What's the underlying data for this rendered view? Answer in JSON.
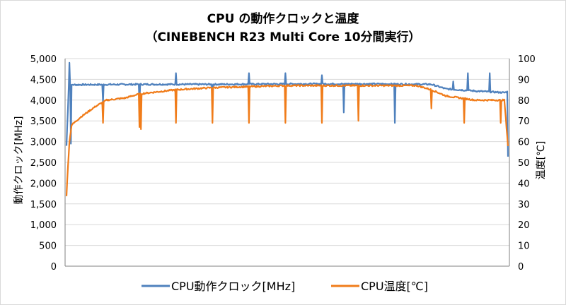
{
  "chart_data": {
    "type": "line",
    "title_line1": "CPU の動作クロックと温度",
    "title_line2": "（CINEBENCH R23 Multi Core 10分間実行）",
    "y_left": {
      "label": "動作クロック[MHz]",
      "min": 0,
      "max": 5000,
      "step": 500,
      "ticks": [
        "0",
        "500",
        "1,000",
        "1,500",
        "2,000",
        "2,500",
        "3,000",
        "3,500",
        "4,000",
        "4,500",
        "5,000"
      ]
    },
    "y_right": {
      "label": "温度[℃]",
      "min": 0,
      "max": 100,
      "step": 10,
      "ticks": [
        "0",
        "10",
        "20",
        "30",
        "40",
        "50",
        "60",
        "70",
        "80",
        "90",
        "100"
      ]
    },
    "x_samples": 600,
    "gridlines": true,
    "legend_position": "bottom",
    "colors": {
      "clock": "#4f81bd",
      "temp": "#f07c1a",
      "grid": "#d9d9d9",
      "axis": "#808080"
    },
    "series": [
      {
        "name": "CPU動作クロック[MHz]",
        "axis": "left",
        "color": "#4f81bd",
        "base": [
          [
            0,
            2900
          ],
          [
            3,
            4300
          ],
          [
            8,
            4370
          ],
          [
            100,
            4380
          ],
          [
            200,
            4380
          ],
          [
            300,
            4390
          ],
          [
            420,
            4390
          ],
          [
            500,
            4380
          ],
          [
            520,
            4270
          ],
          [
            560,
            4220
          ],
          [
            600,
            4180
          ],
          [
            604,
            4200
          ],
          [
            605,
            2650
          ]
        ],
        "spikes": [
          [
            4,
            4900
          ],
          [
            6,
            2950
          ],
          [
            50,
            3950
          ],
          [
            100,
            3900
          ],
          [
            150,
            4650
          ],
          [
            200,
            4000
          ],
          [
            250,
            4650
          ],
          [
            300,
            4650
          ],
          [
            350,
            4600
          ],
          [
            380,
            3700
          ],
          [
            450,
            3450
          ],
          [
            530,
            4450
          ],
          [
            550,
            4650
          ],
          [
            580,
            4650
          ]
        ]
      },
      {
        "name": "CPU温度[℃]",
        "axis": "right",
        "color": "#f07c1a",
        "base": [
          [
            0,
            34
          ],
          [
            2,
            48
          ],
          [
            4,
            60
          ],
          [
            7,
            68
          ],
          [
            20,
            72
          ],
          [
            40,
            77
          ],
          [
            55,
            80
          ],
          [
            80,
            81
          ],
          [
            100,
            83
          ],
          [
            150,
            85
          ],
          [
            200,
            86
          ],
          [
            250,
            86.5
          ],
          [
            300,
            87
          ],
          [
            350,
            87
          ],
          [
            400,
            87
          ],
          [
            480,
            87
          ],
          [
            500,
            85
          ],
          [
            520,
            82
          ],
          [
            560,
            80
          ],
          [
            600,
            80
          ],
          [
            605,
            58
          ]
        ],
        "spikes": [
          [
            50,
            69
          ],
          [
            100,
            67
          ],
          [
            102,
            66
          ],
          [
            150,
            69
          ],
          [
            200,
            69
          ],
          [
            250,
            69
          ],
          [
            300,
            69
          ],
          [
            350,
            69
          ],
          [
            400,
            70
          ],
          [
            500,
            76
          ],
          [
            545,
            69
          ],
          [
            595,
            69
          ]
        ]
      }
    ],
    "legend": [
      {
        "label": "CPU動作クロック[MHz]",
        "color": "#4f81bd"
      },
      {
        "label": "CPU温度[℃]",
        "color": "#f07c1a"
      }
    ]
  }
}
